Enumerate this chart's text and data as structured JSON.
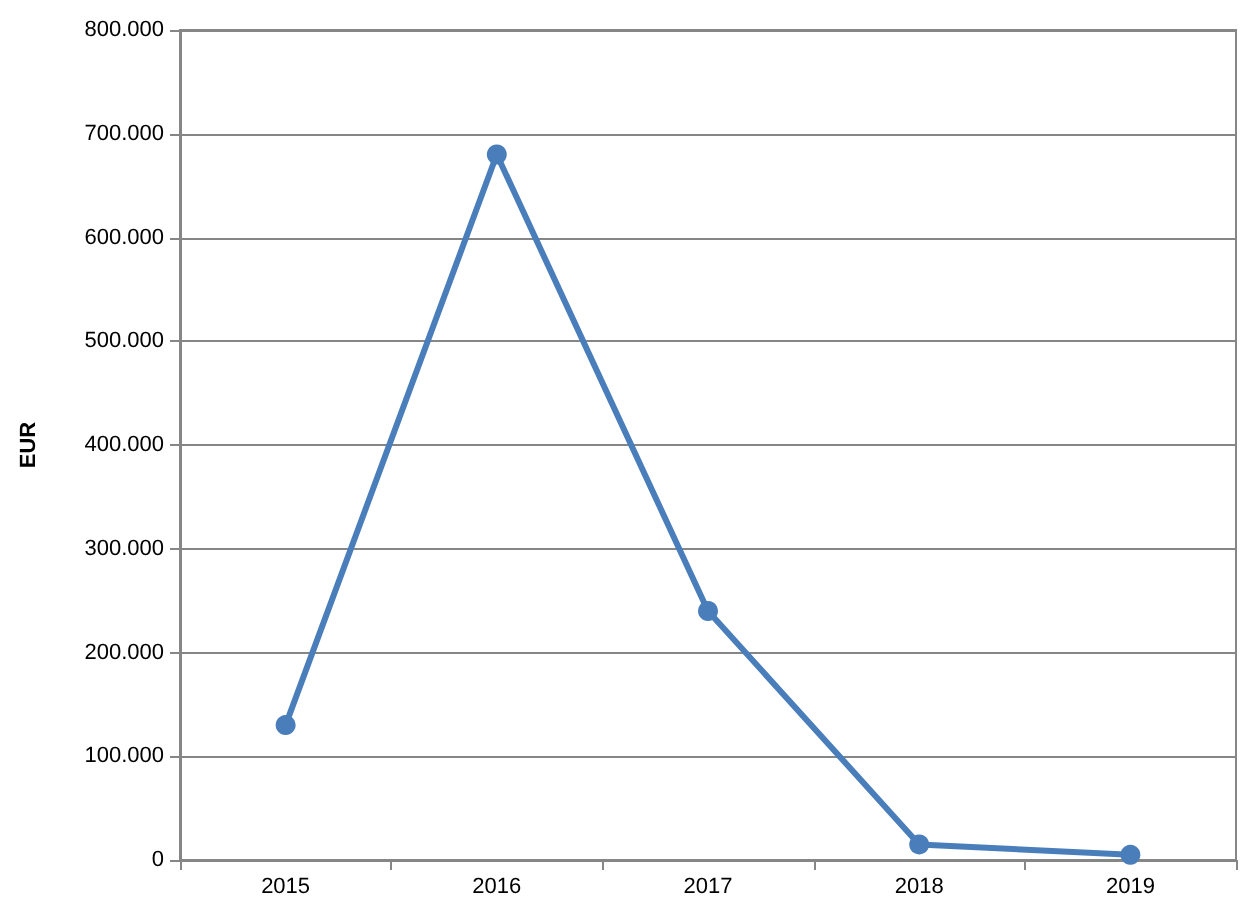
{
  "chart_data": {
    "type": "line",
    "ylabel": "EUR",
    "categories": [
      "2015",
      "2016",
      "2017",
      "2018",
      "2019"
    ],
    "series": [
      {
        "color": "#4a7ebb",
        "values": [
          130000,
          680000,
          240000,
          15000,
          5000
        ]
      }
    ],
    "ylim": [
      0,
      800000
    ],
    "yticks": [
      {
        "value": 0,
        "label": "0"
      },
      {
        "value": 100000,
        "label": "100.000"
      },
      {
        "value": 200000,
        "label": "200.000"
      },
      {
        "value": 300000,
        "label": "300.000"
      },
      {
        "value": 400000,
        "label": "400.000"
      },
      {
        "value": 500000,
        "label": "500.000"
      },
      {
        "value": 600000,
        "label": "600.000"
      },
      {
        "value": 700000,
        "label": "700.000"
      },
      {
        "value": 800000,
        "label": "800.000"
      }
    ],
    "grid": "y",
    "marker": "circle",
    "line_style": "solid"
  }
}
